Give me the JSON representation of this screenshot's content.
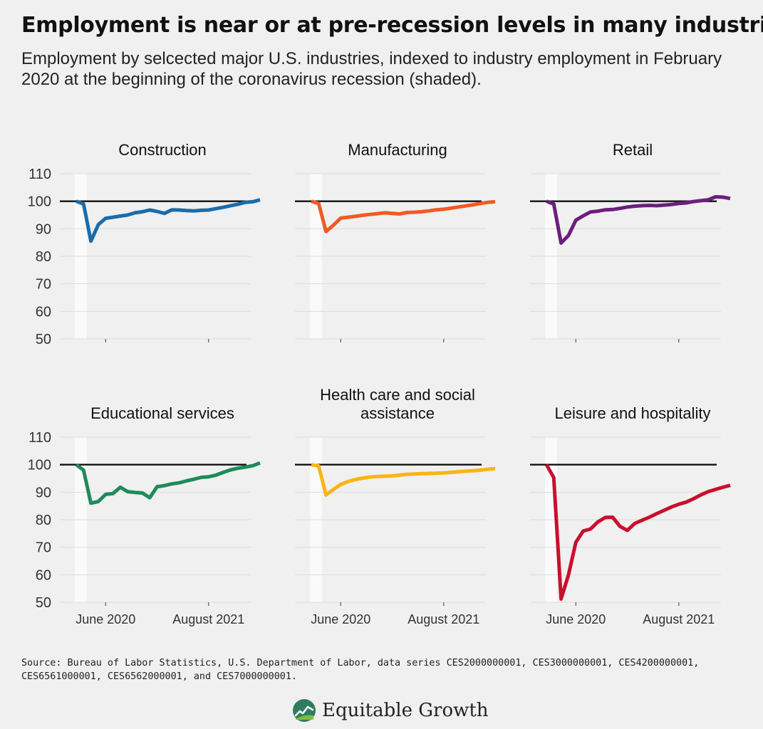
{
  "header": {
    "title": "Employment is near or at pre-recession levels in many industries",
    "subtitle": "Employment by selcected major U.S. industries, indexed to industry employment in February 2020 at the beginning of the coronavirus recession (shaded)."
  },
  "footer": {
    "source": "Source: Bureau of Labor Statistics, U.S. Department of Labor, data series CES2000000001, CES3000000001, CES4200000001, CES6561000001, CES6562000001, and CES7000000001.",
    "brand": "Equitable Growth"
  },
  "chart_data": [
    {
      "type": "line",
      "title": "Construction",
      "x": [
        "2020-02",
        "2020-03",
        "2020-04",
        "2020-05",
        "2020-06",
        "2020-07",
        "2020-08",
        "2020-09",
        "2020-10",
        "2020-11",
        "2020-12",
        "2021-01",
        "2021-02",
        "2021-03",
        "2021-04",
        "2021-05",
        "2021-06",
        "2021-07",
        "2021-08",
        "2021-09",
        "2021-10",
        "2021-11",
        "2021-12",
        "2022-01",
        "2022-02",
        "2022-03"
      ],
      "series": [
        {
          "values": [
            100,
            99,
            85.5,
            91.5,
            93.8,
            94.2,
            94.6,
            95,
            95.8,
            96.2,
            96.8,
            96.3,
            95.6,
            96.9,
            96.8,
            96.6,
            96.5,
            96.7,
            96.8,
            97.3,
            97.8,
            98.4,
            98.9,
            99.6,
            99.8,
            100.5
          ],
          "color": "#1b6ca8"
        }
      ],
      "xticks": [
        "June 2020",
        "August 2021"
      ],
      "ylim": [
        50,
        110
      ],
      "yticks": [
        50,
        60,
        70,
        80,
        90,
        100,
        110
      ],
      "reference_line": 100,
      "recession_shading": [
        "2020-02",
        "2020-04"
      ],
      "grid": true
    },
    {
      "type": "line",
      "title": "Manufacturing",
      "x": [
        "2020-02",
        "2020-03",
        "2020-04",
        "2020-05",
        "2020-06",
        "2020-07",
        "2020-08",
        "2020-09",
        "2020-10",
        "2020-11",
        "2020-12",
        "2021-01",
        "2021-02",
        "2021-03",
        "2021-04",
        "2021-05",
        "2021-06",
        "2021-07",
        "2021-08",
        "2021-09",
        "2021-10",
        "2021-11",
        "2021-12",
        "2022-01",
        "2022-02",
        "2022-03"
      ],
      "series": [
        {
          "values": [
            100,
            99.2,
            89,
            91.3,
            93.9,
            94.2,
            94.5,
            94.9,
            95.2,
            95.5,
            95.8,
            95.6,
            95.4,
            95.9,
            96,
            96.2,
            96.5,
            96.9,
            97.1,
            97.5,
            97.9,
            98.3,
            98.7,
            99.2,
            99.6,
            99.8
          ],
          "color": "#f15a24"
        }
      ],
      "xticks": [
        "June 2020",
        "August 2021"
      ],
      "ylim": [
        50,
        110
      ],
      "yticks": [
        50,
        60,
        70,
        80,
        90,
        100,
        110
      ],
      "reference_line": 100,
      "recession_shading": [
        "2020-02",
        "2020-04"
      ],
      "grid": true
    },
    {
      "type": "line",
      "title": "Retail",
      "x": [
        "2020-02",
        "2020-03",
        "2020-04",
        "2020-05",
        "2020-06",
        "2020-07",
        "2020-08",
        "2020-09",
        "2020-10",
        "2020-11",
        "2020-12",
        "2021-01",
        "2021-02",
        "2021-03",
        "2021-04",
        "2021-05",
        "2021-06",
        "2021-07",
        "2021-08",
        "2021-09",
        "2021-10",
        "2021-11",
        "2021-12",
        "2022-01",
        "2022-02",
        "2022-03"
      ],
      "series": [
        {
          "values": [
            100,
            99,
            84.8,
            87.6,
            93.1,
            94.7,
            96.1,
            96.4,
            96.9,
            97,
            97.4,
            97.9,
            98.2,
            98.4,
            98.5,
            98.4,
            98.6,
            98.8,
            99.2,
            99.4,
            99.9,
            100.2,
            100.5,
            101.6,
            101.5,
            101
          ],
          "color": "#6b1f7c"
        }
      ],
      "xticks": [
        "June 2020",
        "August 2021"
      ],
      "ylim": [
        50,
        110
      ],
      "yticks": [
        50,
        60,
        70,
        80,
        90,
        100,
        110
      ],
      "reference_line": 100,
      "recession_shading": [
        "2020-02",
        "2020-04"
      ],
      "grid": true
    },
    {
      "type": "line",
      "title": "Educational services",
      "x": [
        "2020-02",
        "2020-03",
        "2020-04",
        "2020-05",
        "2020-06",
        "2020-07",
        "2020-08",
        "2020-09",
        "2020-10",
        "2020-11",
        "2020-12",
        "2021-01",
        "2021-02",
        "2021-03",
        "2021-04",
        "2021-05",
        "2021-06",
        "2021-07",
        "2021-08",
        "2021-09",
        "2021-10",
        "2021-11",
        "2021-12",
        "2022-01",
        "2022-02",
        "2022-03"
      ],
      "series": [
        {
          "values": [
            100,
            98,
            86,
            86.6,
            89.2,
            89.5,
            91.8,
            90.2,
            89.9,
            89.7,
            88,
            92,
            92.4,
            93,
            93.4,
            94.1,
            94.7,
            95.4,
            95.6,
            96.2,
            97.2,
            98.1,
            98.7,
            99.1,
            99.6,
            100.6
          ],
          "color": "#1f8a5a"
        }
      ],
      "xticks": [
        "June 2020",
        "August 2021"
      ],
      "ylim": [
        50,
        110
      ],
      "yticks": [
        50,
        60,
        70,
        80,
        90,
        100,
        110
      ],
      "reference_line": 100,
      "recession_shading": [
        "2020-02",
        "2020-04"
      ],
      "grid": true
    },
    {
      "type": "line",
      "title": "Health care and social assistance",
      "x": [
        "2020-02",
        "2020-03",
        "2020-04",
        "2020-05",
        "2020-06",
        "2020-07",
        "2020-08",
        "2020-09",
        "2020-10",
        "2020-11",
        "2020-12",
        "2021-01",
        "2021-02",
        "2021-03",
        "2021-04",
        "2021-05",
        "2021-06",
        "2021-07",
        "2021-08",
        "2021-09",
        "2021-10",
        "2021-11",
        "2021-12",
        "2022-01",
        "2022-02",
        "2022-03"
      ],
      "series": [
        {
          "values": [
            100,
            99.5,
            89,
            91,
            92.8,
            93.9,
            94.6,
            95.1,
            95.5,
            95.7,
            95.8,
            95.9,
            96.2,
            96.5,
            96.6,
            96.7,
            96.8,
            96.9,
            97,
            97.2,
            97.4,
            97.6,
            97.8,
            98,
            98.3,
            98.6
          ],
          "color": "#fbb416"
        }
      ],
      "xticks": [
        "June 2020",
        "August 2021"
      ],
      "ylim": [
        50,
        110
      ],
      "yticks": [
        50,
        60,
        70,
        80,
        90,
        100,
        110
      ],
      "reference_line": 100,
      "recession_shading": [
        "2020-02",
        "2020-04"
      ],
      "grid": true
    },
    {
      "type": "line",
      "title": "Leisure and hospitality",
      "x": [
        "2020-02",
        "2020-03",
        "2020-04",
        "2020-05",
        "2020-06",
        "2020-07",
        "2020-08",
        "2020-09",
        "2020-10",
        "2020-11",
        "2020-12",
        "2021-01",
        "2021-02",
        "2021-03",
        "2021-04",
        "2021-05",
        "2021-06",
        "2021-07",
        "2021-08",
        "2021-09",
        "2021-10",
        "2021-11",
        "2021-12",
        "2022-01",
        "2022-02",
        "2022-03"
      ],
      "series": [
        {
          "values": [
            100,
            95.3,
            51.2,
            60,
            71.8,
            75.9,
            76.6,
            79.2,
            80.8,
            80.9,
            77.6,
            76.1,
            78.6,
            79.8,
            80.9,
            82.2,
            83.4,
            84.6,
            85.6,
            86.4,
            87.6,
            89,
            90.2,
            91,
            91.8,
            92.5
          ],
          "color": "#c8102e"
        }
      ],
      "xticks": [
        "June 2020",
        "August 2021"
      ],
      "ylim": [
        50,
        110
      ],
      "yticks": [
        50,
        60,
        70,
        80,
        90,
        100,
        110
      ],
      "reference_line": 100,
      "recession_shading": [
        "2020-02",
        "2020-04"
      ],
      "grid": true
    }
  ]
}
